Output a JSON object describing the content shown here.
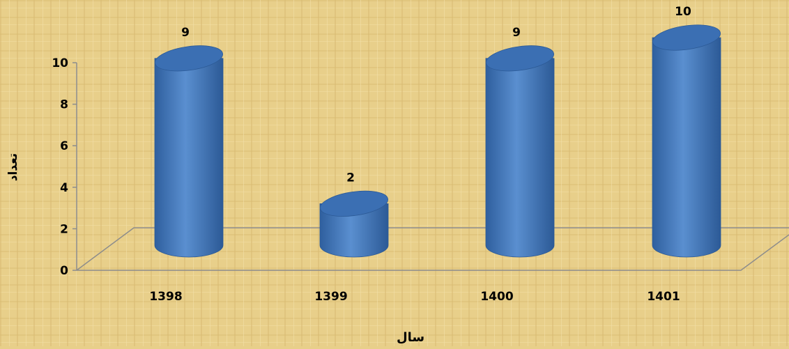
{
  "chart_data": {
    "type": "bar",
    "categories": [
      "1398",
      "1399",
      "1400",
      "1401"
    ],
    "values": [
      9,
      2,
      9,
      10
    ],
    "xlabel": "سال",
    "ylabel": "تعداد",
    "ylim": [
      0,
      10
    ],
    "yticks": [
      0,
      2,
      4,
      6,
      8,
      10
    ],
    "grid": false,
    "legend": "none"
  },
  "colors": {
    "bar": "#4f81c4",
    "bar_dark": "#2c5a96",
    "bar_top": "#3b6fb3",
    "background": "#e8cf8a",
    "axis": "#8c8c8c"
  }
}
